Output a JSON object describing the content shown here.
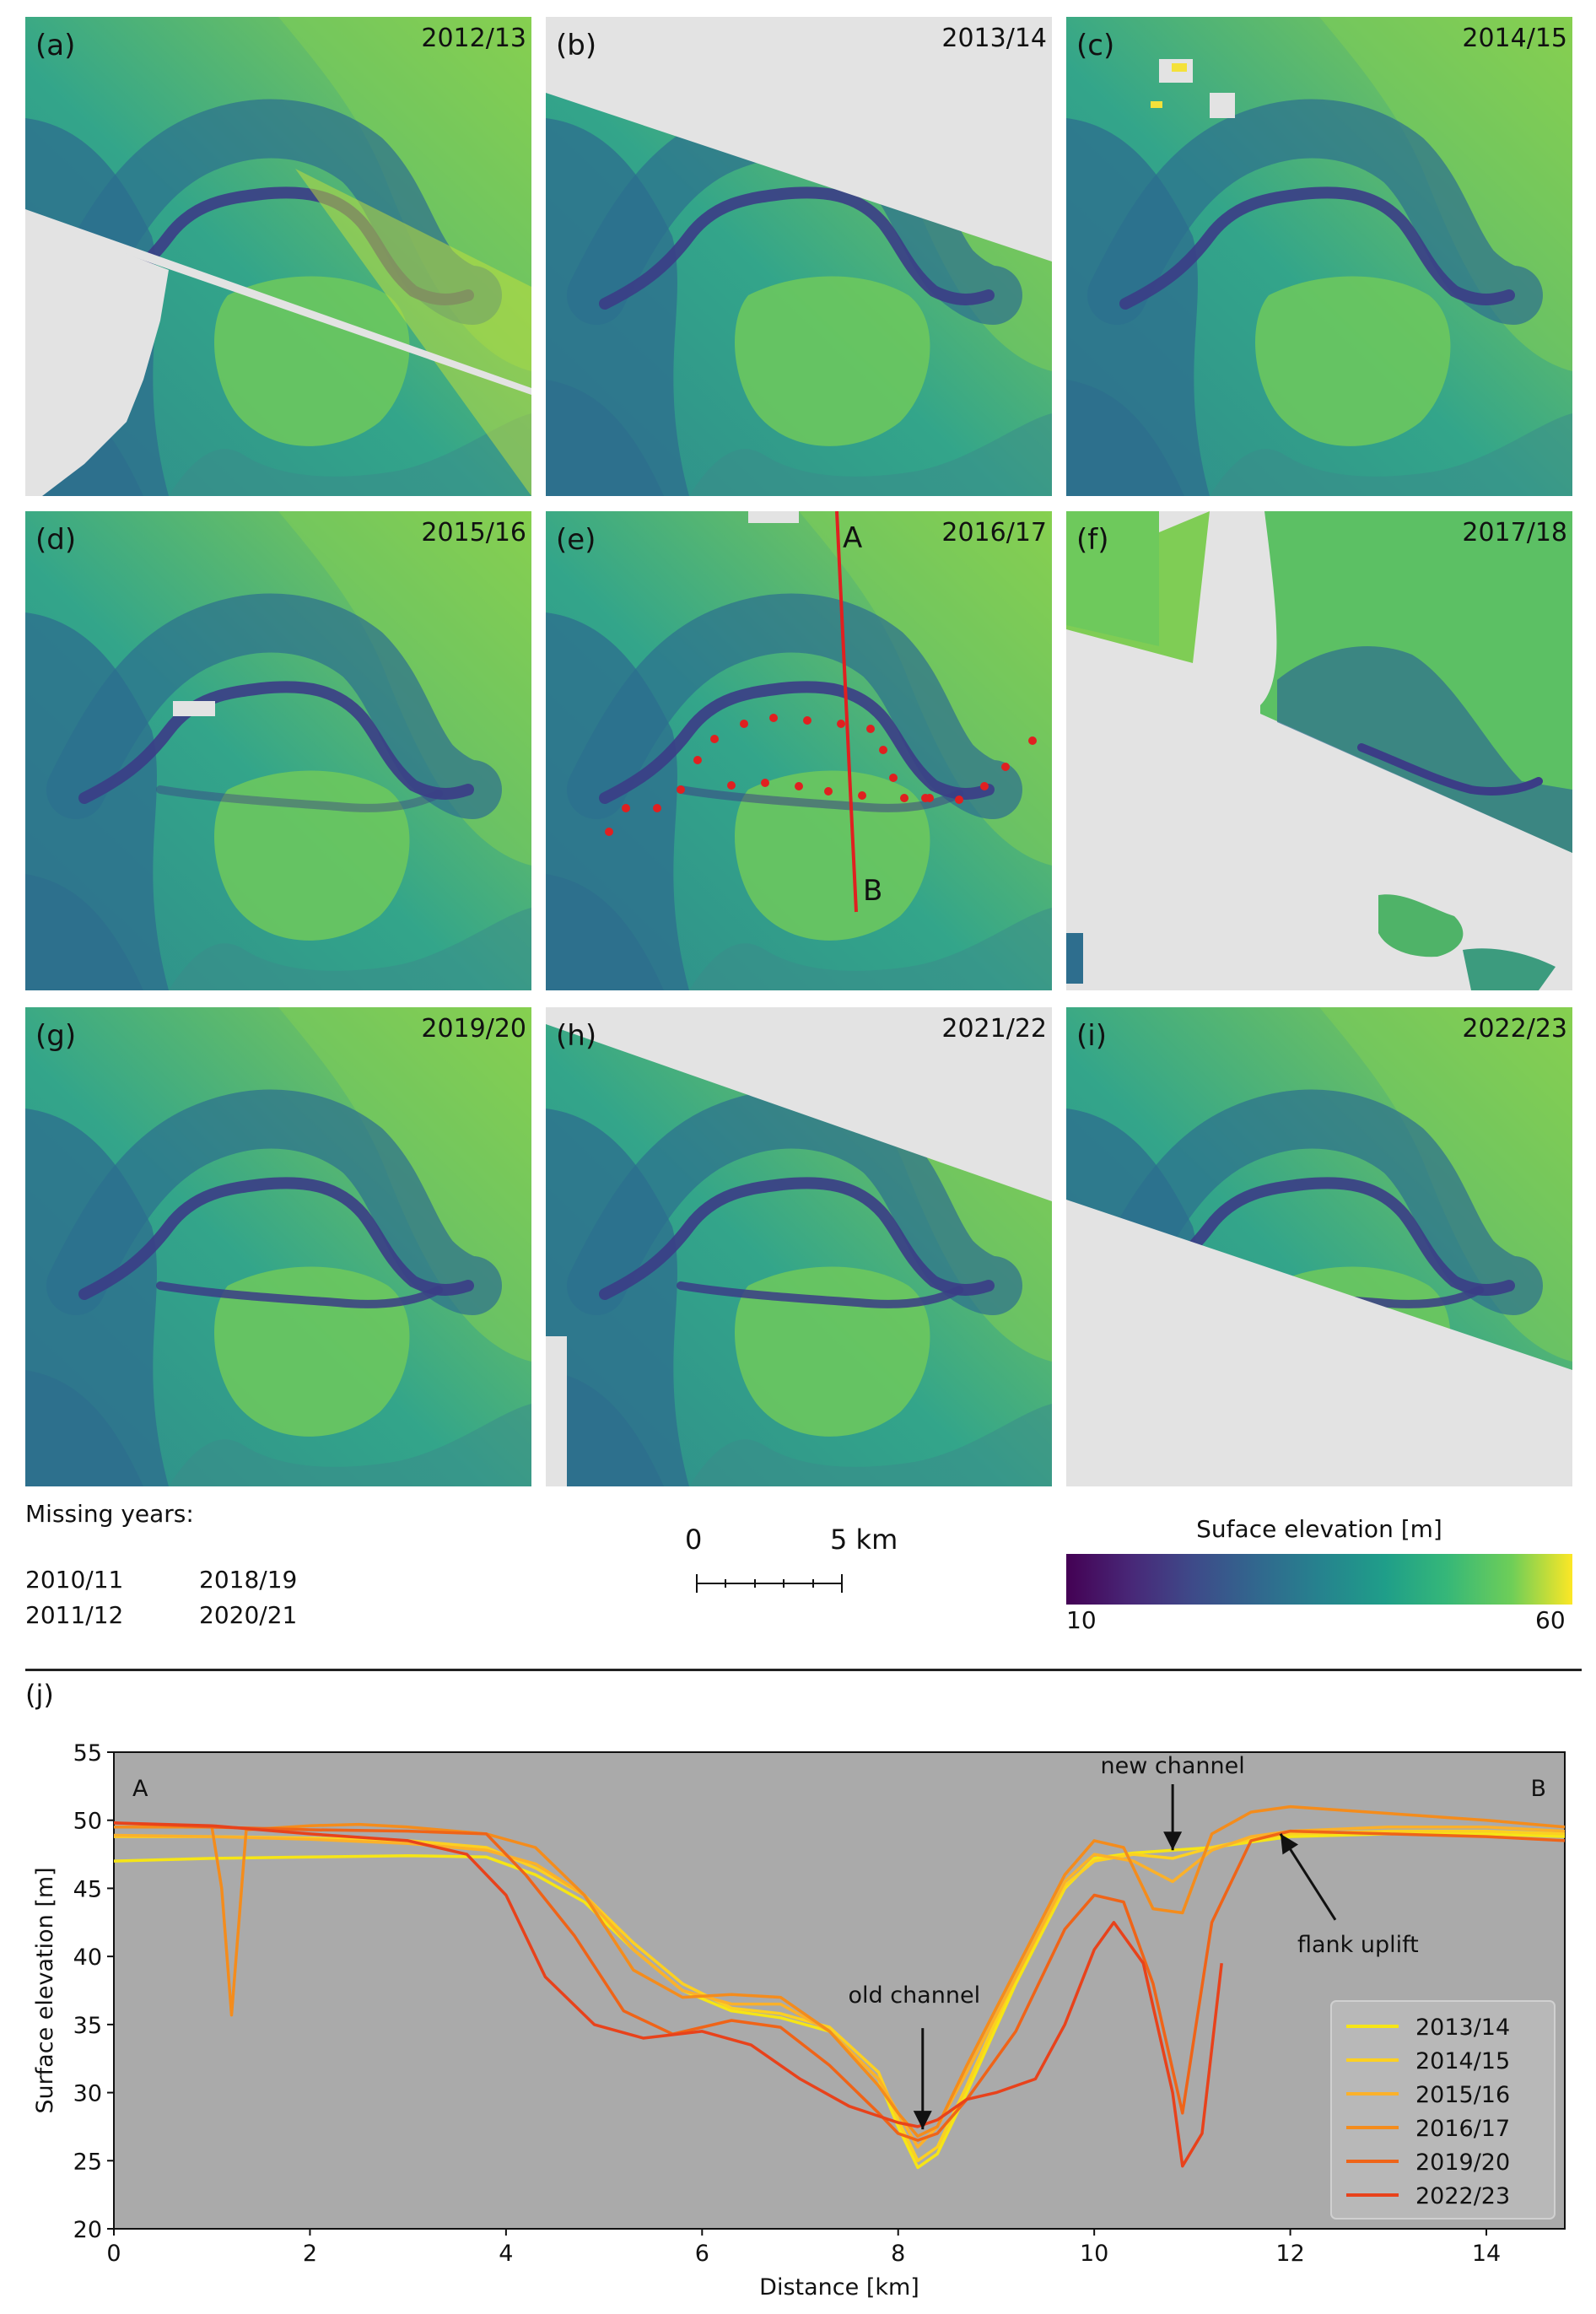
{
  "panels": [
    {
      "label": "(a)",
      "year": "2012/13"
    },
    {
      "label": "(b)",
      "year": "2013/14"
    },
    {
      "label": "(c)",
      "year": "2014/15"
    },
    {
      "label": "(d)",
      "year": "2015/16"
    },
    {
      "label": "(e)",
      "year": "2016/17"
    },
    {
      "label": "(f)",
      "year": "2017/18"
    },
    {
      "label": "(g)",
      "year": "2019/20"
    },
    {
      "label": "(h)",
      "year": "2021/22"
    },
    {
      "label": "(i)",
      "year": "2022/23"
    }
  ],
  "profile_line_labels": {
    "start": "A",
    "end": "B"
  },
  "missing_years": {
    "title": "Missing years:",
    "years": [
      "2010/11",
      "2018/19",
      "2011/12",
      "2020/21"
    ]
  },
  "scale_bar": {
    "start": "0",
    "end": "5 km"
  },
  "colorbar": {
    "title": "Suface elevation [m]",
    "min": "10",
    "max": "60"
  },
  "chart_data": {
    "type": "line",
    "panel_label": "(j)",
    "xlabel": "Distance [km]",
    "ylabel": "Surface elevation [m]",
    "xlim": [
      0,
      14.8
    ],
    "ylim": [
      20,
      55
    ],
    "xticks": [
      "0",
      "2",
      "4",
      "6",
      "8",
      "10",
      "12",
      "14"
    ],
    "yticks": [
      "20",
      "25",
      "30",
      "35",
      "40",
      "45",
      "50",
      "55"
    ],
    "background": "#aaaaaa",
    "legend_position": "lower-right",
    "end_labels": {
      "start": "A",
      "end": "B"
    },
    "annotations": [
      {
        "text": "new channel",
        "x": 10.8,
        "y": 47.8
      },
      {
        "text": "old channel",
        "x": 8.25,
        "y": 27.3
      },
      {
        "text": "flank uplift",
        "x": 11.9,
        "y": 49.0
      }
    ],
    "series": [
      {
        "name": "2013/14",
        "color": "#f6e516",
        "x": [
          0,
          1,
          2,
          3,
          3.8,
          4.3,
          4.8,
          5.3,
          5.8,
          6.3,
          6.8,
          7.3,
          7.8,
          8.0,
          8.2,
          8.4,
          8.7,
          9.2,
          9.7,
          10.0,
          10.4,
          10.8,
          11.2,
          11.6,
          12.0,
          13.0,
          14.0,
          14.8
        ],
        "y": [
          47.0,
          47.2,
          47.3,
          47.4,
          47.3,
          46.0,
          44.0,
          40.5,
          37.5,
          36.0,
          35.5,
          34.5,
          31.0,
          27.5,
          24.5,
          25.5,
          30.0,
          38.0,
          45.0,
          47.2,
          47.6,
          47.8,
          48.0,
          48.4,
          48.8,
          49.0,
          49.0,
          48.8
        ]
      },
      {
        "name": "2014/15",
        "color": "#fcd022",
        "x": [
          0,
          1,
          2,
          3,
          3.8,
          4.3,
          4.8,
          5.3,
          5.8,
          6.3,
          6.8,
          7.3,
          7.8,
          8.0,
          8.2,
          8.4,
          8.7,
          9.2,
          9.7,
          10.0,
          10.4,
          10.8,
          11.2,
          11.6,
          12.0,
          13.0,
          14.0,
          14.8
        ],
        "y": [
          48.8,
          48.8,
          48.7,
          48.5,
          48.0,
          46.5,
          44.5,
          41.0,
          38.0,
          36.2,
          35.8,
          34.8,
          31.5,
          28.0,
          25.0,
          26.0,
          30.5,
          38.5,
          45.2,
          47.0,
          47.5,
          47.2,
          48.0,
          48.6,
          49.0,
          49.2,
          49.2,
          49.0
        ]
      },
      {
        "name": "2015/16",
        "color": "#fbb12a",
        "x": [
          0,
          1,
          2,
          3,
          3.8,
          4.3,
          4.8,
          5.3,
          5.8,
          6.3,
          6.8,
          7.3,
          7.8,
          8.0,
          8.2,
          8.4,
          8.7,
          9.2,
          9.7,
          10.0,
          10.4,
          10.8,
          11.2,
          11.6,
          12.0,
          13.0,
          14.0,
          14.8
        ],
        "y": [
          48.9,
          48.8,
          48.6,
          48.3,
          47.8,
          46.8,
          44.5,
          40.5,
          37.5,
          36.5,
          36.5,
          34.5,
          31.0,
          28.5,
          26.0,
          27.5,
          31.5,
          38.5,
          45.5,
          47.5,
          47.0,
          45.5,
          47.8,
          48.8,
          49.2,
          49.5,
          49.5,
          49.2
        ]
      },
      {
        "name": "2016/17",
        "color": "#f48c1c",
        "x": [
          0,
          1,
          1.1,
          1.2,
          1.35,
          2,
          2.5,
          3,
          3.8,
          4.3,
          4.8,
          5.3,
          5.8,
          6.3,
          6.8,
          7.3,
          7.8,
          8.0,
          8.2,
          8.4,
          8.7,
          9.2,
          9.7,
          10.0,
          10.3,
          10.6,
          10.9,
          11.2,
          11.6,
          12.0,
          13.0,
          14.0,
          14.8
        ],
        "y": [
          49.5,
          49.5,
          45.0,
          35.7,
          49.3,
          49.6,
          49.7,
          49.5,
          49.0,
          48.0,
          44.5,
          39.0,
          37.0,
          37.2,
          37.0,
          34.5,
          30.5,
          28.5,
          26.8,
          27.5,
          32.0,
          39.0,
          46.0,
          48.5,
          48.0,
          43.5,
          43.2,
          49.0,
          50.6,
          51.0,
          50.5,
          50.0,
          49.5
        ]
      },
      {
        "name": "2019/20",
        "color": "#ef6418",
        "x": [
          0,
          1,
          2,
          3,
          3.8,
          4.2,
          4.7,
          5.2,
          5.7,
          6.3,
          6.8,
          7.3,
          7.8,
          8.0,
          8.2,
          8.4,
          8.7,
          9.2,
          9.7,
          10.0,
          10.3,
          10.6,
          10.9,
          11.2,
          11.6,
          12.0,
          13.0,
          14.0,
          14.8
        ],
        "y": [
          49.8,
          49.5,
          49.3,
          49.2,
          49.0,
          46.0,
          41.5,
          36.0,
          34.3,
          35.3,
          34.8,
          32.0,
          28.5,
          27.0,
          26.5,
          27.0,
          29.5,
          34.5,
          42.0,
          44.5,
          44.0,
          38.0,
          28.5,
          42.5,
          48.5,
          49.2,
          49.0,
          48.8,
          48.5
        ]
      },
      {
        "name": "2022/23",
        "color": "#e8421b",
        "x": [
          0,
          1,
          2,
          3,
          3.6,
          4.0,
          4.4,
          4.9,
          5.4,
          6.0,
          6.5,
          7.0,
          7.5,
          8.0,
          8.2,
          8.4,
          8.7,
          9.0,
          9.4,
          9.7,
          10.0,
          10.2,
          10.5,
          10.8,
          10.9,
          11.1,
          11.3
        ],
        "y": [
          49.8,
          49.6,
          49.0,
          48.5,
          47.5,
          44.5,
          38.5,
          35.0,
          34.0,
          34.5,
          33.5,
          31.0,
          29.0,
          27.8,
          27.5,
          28.0,
          29.5,
          30.0,
          31.0,
          35.0,
          40.5,
          42.5,
          39.5,
          30.0,
          24.6,
          27.0,
          39.5
        ]
      }
    ]
  }
}
